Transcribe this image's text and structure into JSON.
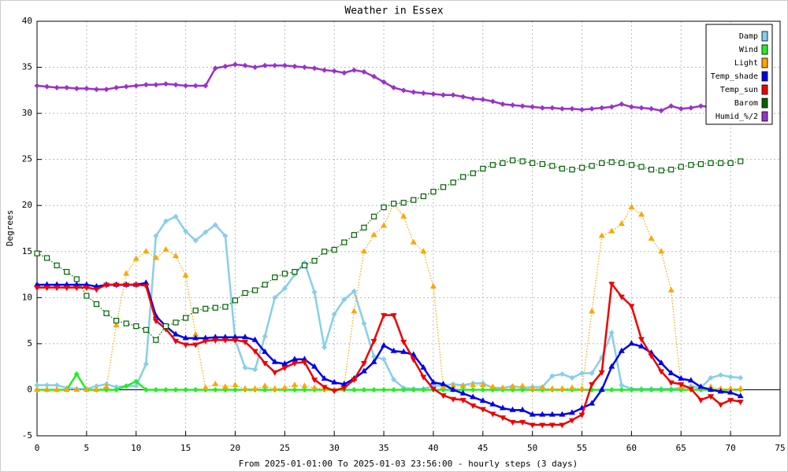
{
  "chart_data": {
    "type": "line",
    "title": "Weather in Essex",
    "y_label": "Degrees",
    "x_label": "From 2025-01-01:00 To 2025-01-03 23:56:00 - hourly steps (3 days)",
    "xlim": [
      0,
      75
    ],
    "xticks": [
      0,
      5,
      10,
      15,
      20,
      25,
      30,
      35,
      40,
      45,
      50,
      55,
      60,
      65,
      70,
      75
    ],
    "ylim": [
      -5,
      40
    ],
    "yticks": [
      -5,
      0,
      5,
      10,
      15,
      20,
      25,
      30,
      35,
      40
    ],
    "grid": true,
    "legend": "top-right",
    "x": [
      0,
      1,
      2,
      3,
      4,
      5,
      6,
      7,
      8,
      9,
      10,
      11,
      12,
      13,
      14,
      15,
      16,
      17,
      18,
      19,
      20,
      21,
      22,
      23,
      24,
      25,
      26,
      27,
      28,
      29,
      30,
      31,
      32,
      33,
      34,
      35,
      36,
      37,
      38,
      39,
      40,
      41,
      42,
      43,
      44,
      45,
      46,
      47,
      48,
      49,
      50,
      51,
      52,
      53,
      54,
      55,
      56,
      57,
      58,
      59,
      60,
      61,
      62,
      63,
      64,
      65,
      66,
      67,
      68,
      69,
      70,
      71
    ],
    "series": [
      {
        "name": "Damp",
        "color": "#87ceeb",
        "marker": "diamond",
        "dashed": false,
        "values": [
          0.5,
          0.5,
          0.5,
          0.2,
          0.1,
          0.1,
          0.4,
          0.6,
          0.3,
          0.4,
          0.4,
          2.8,
          16.7,
          18.3,
          18.8,
          17.2,
          16.2,
          17.1,
          17.9,
          16.7,
          5.4,
          2.4,
          2.2,
          5.8,
          10.0,
          11.0,
          12.5,
          13.8,
          10.6,
          4.6,
          8.2,
          9.8,
          10.7,
          7.2,
          3.6,
          3.3,
          1.1,
          0.2,
          0.1,
          0.1,
          0.4,
          0.5,
          0.6,
          0.5,
          0.7,
          0.7,
          0.2,
          0.2,
          0.4,
          0.2,
          0.3,
          0.3,
          1.5,
          1.7,
          1.3,
          1.8,
          1.8,
          3.5,
          6.2,
          0.5,
          0.1,
          0.1,
          0.1,
          0.1,
          0.1,
          0.2,
          0.4,
          0.2,
          1.3,
          1.6,
          1.4,
          1.3
        ]
      },
      {
        "name": "Wind",
        "color": "#22ee22",
        "marker": "diamond",
        "dashed": false,
        "values": [
          0,
          0,
          0,
          0,
          1.7,
          0,
          0,
          0,
          0,
          0.4,
          0.9,
          0,
          0,
          0,
          0,
          0,
          0,
          0,
          0,
          0,
          0,
          0,
          0,
          0,
          0,
          0,
          0,
          0,
          0,
          0,
          0,
          0,
          0,
          0,
          0,
          0,
          0,
          0,
          0,
          0,
          0,
          0,
          0,
          0,
          0,
          0,
          0,
          0,
          0,
          0,
          0,
          0,
          0,
          0,
          0,
          0,
          0,
          0,
          0,
          0,
          0,
          0,
          0,
          0,
          0,
          0,
          0,
          0,
          0,
          0,
          0,
          0
        ]
      },
      {
        "name": "Light",
        "color": "#ffa500",
        "marker": "triangle",
        "dashed": true,
        "values": [
          0,
          0,
          0,
          0,
          0,
          0,
          0,
          0.3,
          7,
          12.6,
          14.2,
          15,
          14.3,
          15.2,
          14.5,
          12.4,
          6,
          0.2,
          0.6,
          0.3,
          0.5,
          0.1,
          0.1,
          0.4,
          0.1,
          0.2,
          0.5,
          0.4,
          0.2,
          0.1,
          0,
          0.5,
          8.5,
          15,
          16.8,
          17.8,
          20.2,
          18.8,
          16,
          15,
          11.2,
          0.3,
          0.4,
          0.4,
          0.5,
          0.5,
          0.3,
          0.2,
          0.3,
          0.4,
          0.1,
          0.2,
          0.1,
          0.1,
          0.2,
          0.1,
          8.5,
          16.7,
          17.2,
          18,
          19.8,
          19,
          16.4,
          15,
          10.8,
          0.3,
          0.1,
          0.2,
          0.3,
          0.1,
          0.1,
          0.1
        ]
      },
      {
        "name": "Temp_shade",
        "color": "#0000ee",
        "marker": "triangle",
        "dashed": false,
        "values": [
          11.4,
          11.4,
          11.4,
          11.4,
          11.4,
          11.4,
          11.2,
          11.4,
          11.4,
          11.4,
          11.4,
          11.6,
          8.0,
          6.9,
          6.0,
          5.6,
          5.6,
          5.6,
          5.7,
          5.7,
          5.7,
          5.7,
          5.4,
          4.1,
          3.0,
          2.8,
          3.3,
          3.3,
          2.5,
          1.2,
          0.8,
          0.6,
          1.2,
          2.0,
          3.0,
          4.8,
          4.2,
          4.1,
          3.8,
          2.4,
          0.8,
          0.6,
          0.0,
          -0.4,
          -0.8,
          -1.2,
          -1.6,
          -2.0,
          -2.2,
          -2.2,
          -2.7,
          -2.7,
          -2.7,
          -2.7,
          -2.5,
          -2.0,
          -1.5,
          0.0,
          2.5,
          4.2,
          5.0,
          4.7,
          4.0,
          2.9,
          1.8,
          1.2,
          1.0,
          0.3,
          0.0,
          -0.2,
          -0.3,
          -0.7
        ]
      },
      {
        "name": "Temp_sun",
        "color": "#ee0000",
        "marker": "triangle-down",
        "dashed": false,
        "values": [
          11.1,
          11.1,
          11.1,
          11.1,
          11.1,
          11.1,
          10.9,
          11.4,
          11.4,
          11.4,
          11.4,
          11.3,
          7.5,
          6.6,
          5.3,
          4.9,
          4.9,
          5.3,
          5.4,
          5.4,
          5.4,
          5.2,
          4.2,
          2.9,
          1.9,
          2.4,
          2.9,
          3.0,
          1.1,
          0.3,
          -0.1,
          0.2,
          1.1,
          2.9,
          5.3,
          8.1,
          8.1,
          5.2,
          3.3,
          1.4,
          0.1,
          -0.6,
          -1.0,
          -1.1,
          -1.7,
          -2.1,
          -2.6,
          -3.0,
          -3.5,
          -3.5,
          -3.8,
          -3.8,
          -3.8,
          -3.8,
          -3.3,
          -2.7,
          0.6,
          1.9,
          11.5,
          10.1,
          9.1,
          5.5,
          3.7,
          2.0,
          0.8,
          0.6,
          0.1,
          -1.1,
          -0.7,
          -1.6,
          -1.1,
          -1.3
        ]
      },
      {
        "name": "Barom",
        "color": "#006400",
        "marker": "square-open",
        "dashed": true,
        "values": [
          14.8,
          14.3,
          13.5,
          12.8,
          12.0,
          10.2,
          9.3,
          8.3,
          7.5,
          7.2,
          6.9,
          6.5,
          5.4,
          6.9,
          7.3,
          7.8,
          8.6,
          8.8,
          8.9,
          9.0,
          9.7,
          10.5,
          10.8,
          11.4,
          12.2,
          12.6,
          12.8,
          13.5,
          14.0,
          15.0,
          15.2,
          16.0,
          16.8,
          17.6,
          18.8,
          19.8,
          20.2,
          20.3,
          20.6,
          21.0,
          21.5,
          22.0,
          22.5,
          23.1,
          23.5,
          24.0,
          24.4,
          24.6,
          24.9,
          24.8,
          24.6,
          24.5,
          24.3,
          24.0,
          23.9,
          24.1,
          24.3,
          24.6,
          24.7,
          24.6,
          24.4,
          24.2,
          23.9,
          23.8,
          23.9,
          24.2,
          24.4,
          24.5,
          24.6,
          24.6,
          24.6,
          24.8
        ]
      },
      {
        "name": "Humid_%/2",
        "color": "#9932cc",
        "marker": "diamond",
        "dashed": false,
        "values": [
          33,
          32.9,
          32.8,
          32.8,
          32.7,
          32.7,
          32.6,
          32.6,
          32.8,
          32.9,
          33,
          33.1,
          33.1,
          33.2,
          33.1,
          33.0,
          33.0,
          33.0,
          34.9,
          35.1,
          35.3,
          35.2,
          35.0,
          35.2,
          35.2,
          35.2,
          35.1,
          35.0,
          34.9,
          34.7,
          34.6,
          34.4,
          34.7,
          34.5,
          34.0,
          33.4,
          32.8,
          32.5,
          32.3,
          32.2,
          32.1,
          32.0,
          32.0,
          31.8,
          31.6,
          31.5,
          31.3,
          31.0,
          30.9,
          30.8,
          30.7,
          30.6,
          30.6,
          30.5,
          30.5,
          30.4,
          30.5,
          30.6,
          30.7,
          31.0,
          30.7,
          30.6,
          30.5,
          30.3,
          30.8,
          30.5,
          30.6,
          30.8,
          30.7,
          30.4,
          30.6,
          30.6
        ]
      }
    ]
  }
}
